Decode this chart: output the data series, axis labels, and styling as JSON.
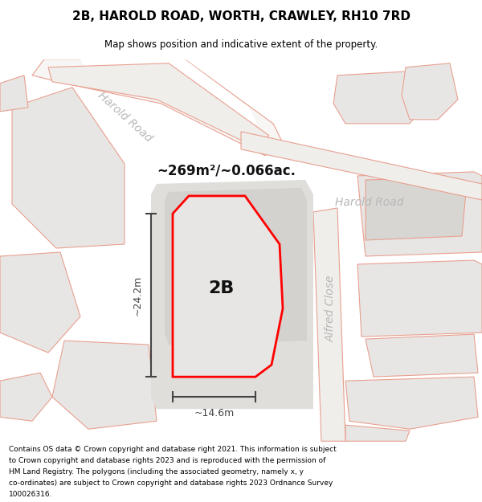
{
  "title_line1": "2B, HAROLD ROAD, WORTH, CRAWLEY, RH10 7RD",
  "title_line2": "Map shows position and indicative extent of the property.",
  "area_text": "~269m²/~0.066ac.",
  "label_2B": "2B",
  "dim_vertical": "~24.2m",
  "dim_horizontal": "~14.6m",
  "road_label_diag": "Harold Road",
  "road_label_horiz": "Harold Road",
  "road_label_vert": "Alfred Close",
  "footer_lines": [
    "Contains OS data © Crown copyright and database right 2021. This information is subject",
    "to Crown copyright and database rights 2023 and is reproduced with the permission of",
    "HM Land Registry. The polygons (including the associated geometry, namely x, y",
    "co-ordinates) are subject to Crown copyright and database rights 2023 Ordnance Survey",
    "100026316."
  ],
  "map_bg": "#ffffff",
  "parcel_fill": "#e8e6e4",
  "parcel_stroke": "#e8a090",
  "road_fill": "#f5f3f0",
  "road_stroke": "#e8a090",
  "plot_fill": "#e8e6e4",
  "plot_stroke": "#ff0000",
  "plot_stroke_lw": 2.0,
  "dim_color": "#444444",
  "road_label_color": "#b8b8b8",
  "area_color": "#111111",
  "label_color": "#111111"
}
